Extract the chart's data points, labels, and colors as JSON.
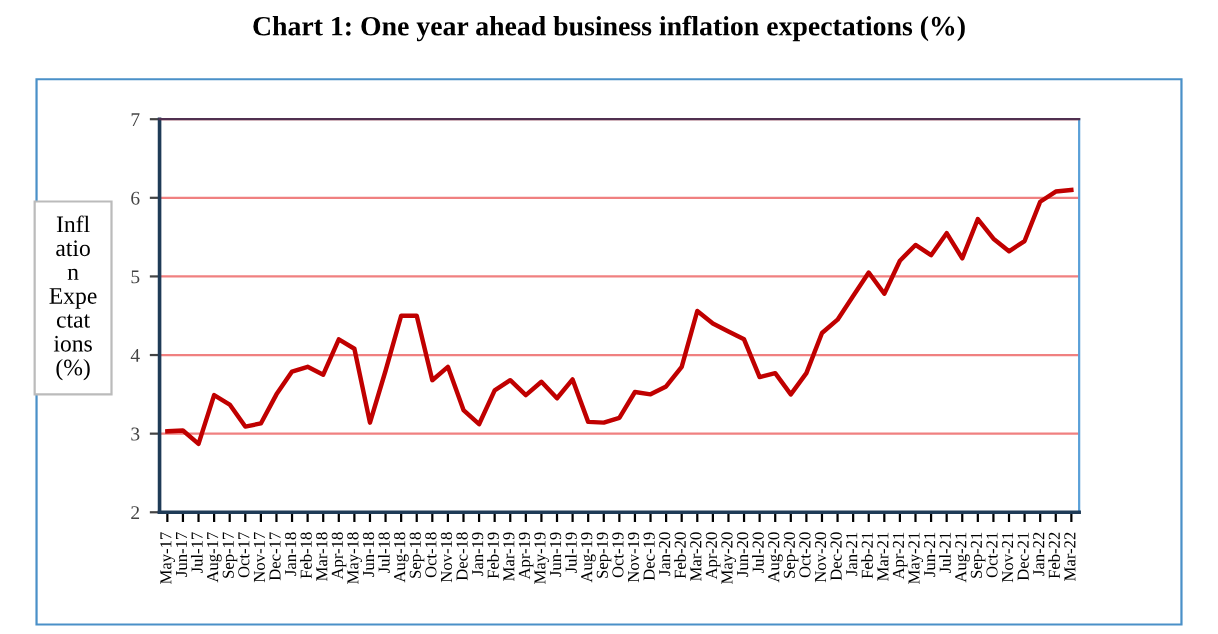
{
  "chart_data": {
    "type": "line",
    "title": "Chart 1: One year ahead business inflation expectations (%)",
    "ylabel": "Inflation Expectations (%)",
    "categories": [
      "May-17",
      "Jun-17",
      "Jul-17",
      "Aug-17",
      "Sep-17",
      "Oct-17",
      "Nov-17",
      "Dec-17",
      "Jan-18",
      "Feb-18",
      "Mar-18",
      "Apr-18",
      "May-18",
      "Jun-18",
      "Jul-18",
      "Aug-18",
      "Sep-18",
      "Oct-18",
      "Nov-18",
      "Dec-18",
      "Jan-19",
      "Feb-19",
      "Mar-19",
      "Apr-19",
      "May-19",
      "Jun-19",
      "Jul-19",
      "Aug-19",
      "Sep-19",
      "Oct-19",
      "Nov-19",
      "Dec-19",
      "Jan-20",
      "Feb-20",
      "Mar-20",
      "Apr-20",
      "May-20",
      "Jun-20",
      "Jul-20",
      "Aug-20",
      "Sep-20",
      "Oct-20",
      "Nov-20",
      "Dec-20",
      "Jan-21",
      "Feb-21",
      "Mar-21",
      "Apr-21",
      "May-21",
      "Jun-21",
      "Jul-21",
      "Aug-21",
      "Sep-21",
      "Oct-21",
      "Nov-21",
      "Dec-21",
      "Jan-22",
      "Feb-22",
      "Mar-22"
    ],
    "series": [
      {
        "color": "#c00000",
        "values": [
          3.03,
          3.04,
          2.87,
          3.49,
          3.37,
          3.09,
          3.13,
          3.5,
          3.79,
          3.85,
          3.75,
          4.2,
          4.08,
          3.14,
          3.8,
          4.5,
          4.5,
          3.68,
          3.85,
          3.3,
          3.12,
          3.55,
          3.68,
          3.49,
          3.66,
          3.45,
          3.69,
          3.15,
          3.14,
          3.2,
          3.53,
          3.5,
          3.6,
          3.85,
          4.56,
          4.4,
          4.3,
          4.2,
          3.72,
          3.77,
          3.5,
          3.77,
          4.28,
          4.45,
          4.75,
          5.05,
          4.78,
          5.2,
          5.4,
          5.27,
          5.55,
          5.23,
          5.73,
          5.48,
          5.32,
          5.45,
          5.95,
          6.08,
          6.1
        ]
      }
    ],
    "ylim": [
      2,
      7
    ],
    "yticks": [
      2,
      3,
      4,
      5,
      6,
      7
    ],
    "grid": "y",
    "legend": false,
    "marker": "none",
    "line_style": "solid"
  }
}
